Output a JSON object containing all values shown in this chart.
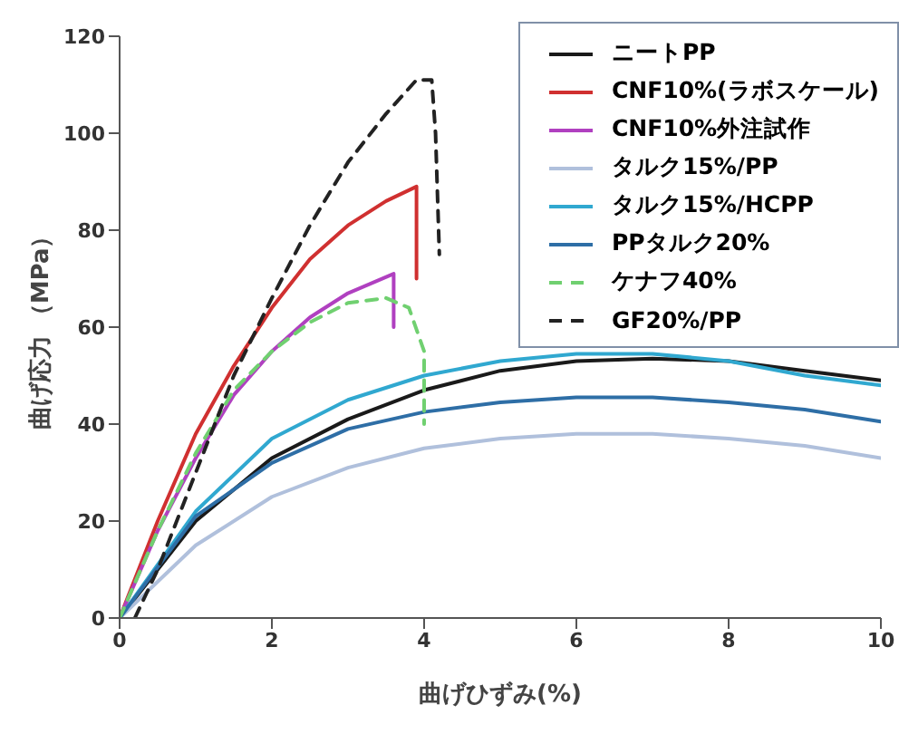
{
  "chart_data": {
    "type": "line",
    "xlabel": "曲げひずみ(%)",
    "ylabel": "曲げ応力 （MPa）",
    "xlim": [
      0,
      10
    ],
    "xticks": [
      0,
      2,
      4,
      6,
      8,
      10
    ],
    "ylim": [
      0,
      120
    ],
    "yticks": [
      0,
      20,
      40,
      60,
      80,
      100,
      120
    ],
    "grid": false,
    "legend": "top right",
    "marker": "none",
    "series": [
      {
        "name": "ニートPP",
        "color": "#1a1a1a",
        "x": [
          0,
          1,
          2,
          3,
          4,
          5,
          6,
          7,
          8,
          9,
          10
        ],
        "values": [
          0,
          20,
          33,
          41,
          47,
          51,
          53,
          53.5,
          53,
          51,
          49
        ]
      },
      {
        "name": "CNF10%(ラボスケール)",
        "color": "#d03030",
        "x": [
          0,
          0.5,
          1,
          1.5,
          2,
          2.5,
          3,
          3.5,
          3.9,
          3.9
        ],
        "values": [
          0,
          20,
          38,
          52,
          64,
          74,
          81,
          86,
          89,
          70
        ]
      },
      {
        "name": "CNF10%外注試作",
        "color": "#b040c0",
        "x": [
          0,
          0.5,
          1,
          1.5,
          2,
          2.5,
          3,
          3.6,
          3.6
        ],
        "values": [
          0,
          18,
          33,
          46,
          55,
          62,
          67,
          71,
          60
        ]
      },
      {
        "name": "タルク15%/PP",
        "color": "#b0c0dc",
        "x": [
          0,
          1,
          2,
          3,
          4,
          5,
          6,
          7,
          8,
          9,
          10
        ],
        "values": [
          0,
          15,
          25,
          31,
          35,
          37,
          38,
          38,
          37,
          35.5,
          33
        ]
      },
      {
        "name": "タルク15%/HCPP",
        "color": "#30a8d0",
        "x": [
          0,
          1,
          2,
          3,
          4,
          5,
          6,
          7,
          8,
          9,
          10
        ],
        "values": [
          0,
          22,
          37,
          45,
          50,
          53,
          54.5,
          54.5,
          53,
          50,
          48
        ]
      },
      {
        "name": "PPタルク20%",
        "color": "#2e6ea6",
        "x": [
          0,
          1,
          2,
          3,
          4,
          5,
          6,
          7,
          8,
          9,
          10
        ],
        "values": [
          0,
          21,
          32,
          39,
          42.5,
          44.5,
          45.5,
          45.5,
          44.5,
          43,
          40.5
        ]
      },
      {
        "name": "ケナフ40%",
        "color": "#70d070",
        "line_style": "dashed",
        "x": [
          0,
          0.5,
          1,
          1.5,
          2,
          2.5,
          3,
          3.5,
          3.8,
          4,
          4
        ],
        "values": [
          0,
          18,
          34,
          47,
          55,
          61,
          65,
          66,
          64,
          55,
          40
        ]
      },
      {
        "name": "GF20%/PP",
        "color": "#222222",
        "line_style": "dashed",
        "x": [
          0.2,
          0.5,
          1,
          1.5,
          2,
          2.5,
          3,
          3.5,
          3.9,
          4.1,
          4.15,
          4.2
        ],
        "values": [
          0,
          10,
          30,
          50,
          66,
          81,
          94,
          104,
          111,
          111,
          100,
          75
        ]
      }
    ]
  }
}
